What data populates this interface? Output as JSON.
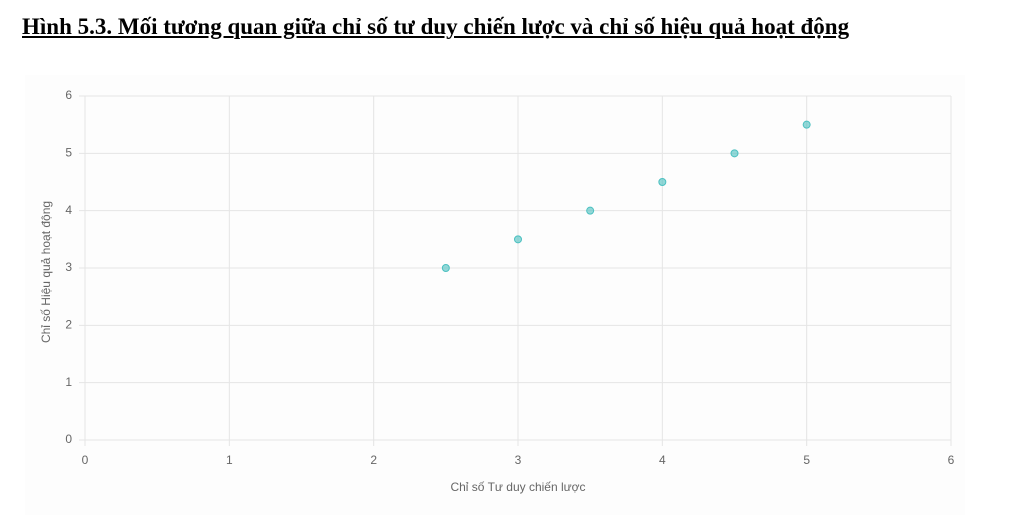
{
  "chart_data": {
    "type": "scatter",
    "title": "Hình 5.3. Mối tương quan giữa chỉ số tư duy chiến lược và chỉ số hiệu quả hoạt động",
    "x_label": "Chỉ số Tư duy chiến lược",
    "y_label": "Chỉ số Hiệu quả hoạt động",
    "x": [
      2.5,
      3,
      3.5,
      4,
      4.5,
      5
    ],
    "values": [
      3,
      3.5,
      4,
      4.5,
      5,
      5.5
    ],
    "color": "#4bc0c0",
    "xlim": [
      0,
      6
    ],
    "xticks": [
      0,
      1,
      2,
      3,
      4,
      5,
      6
    ],
    "ylim": [
      0,
      6
    ],
    "yticks": [
      0,
      1,
      2,
      3,
      4,
      5,
      6
    ],
    "grid": true
  }
}
